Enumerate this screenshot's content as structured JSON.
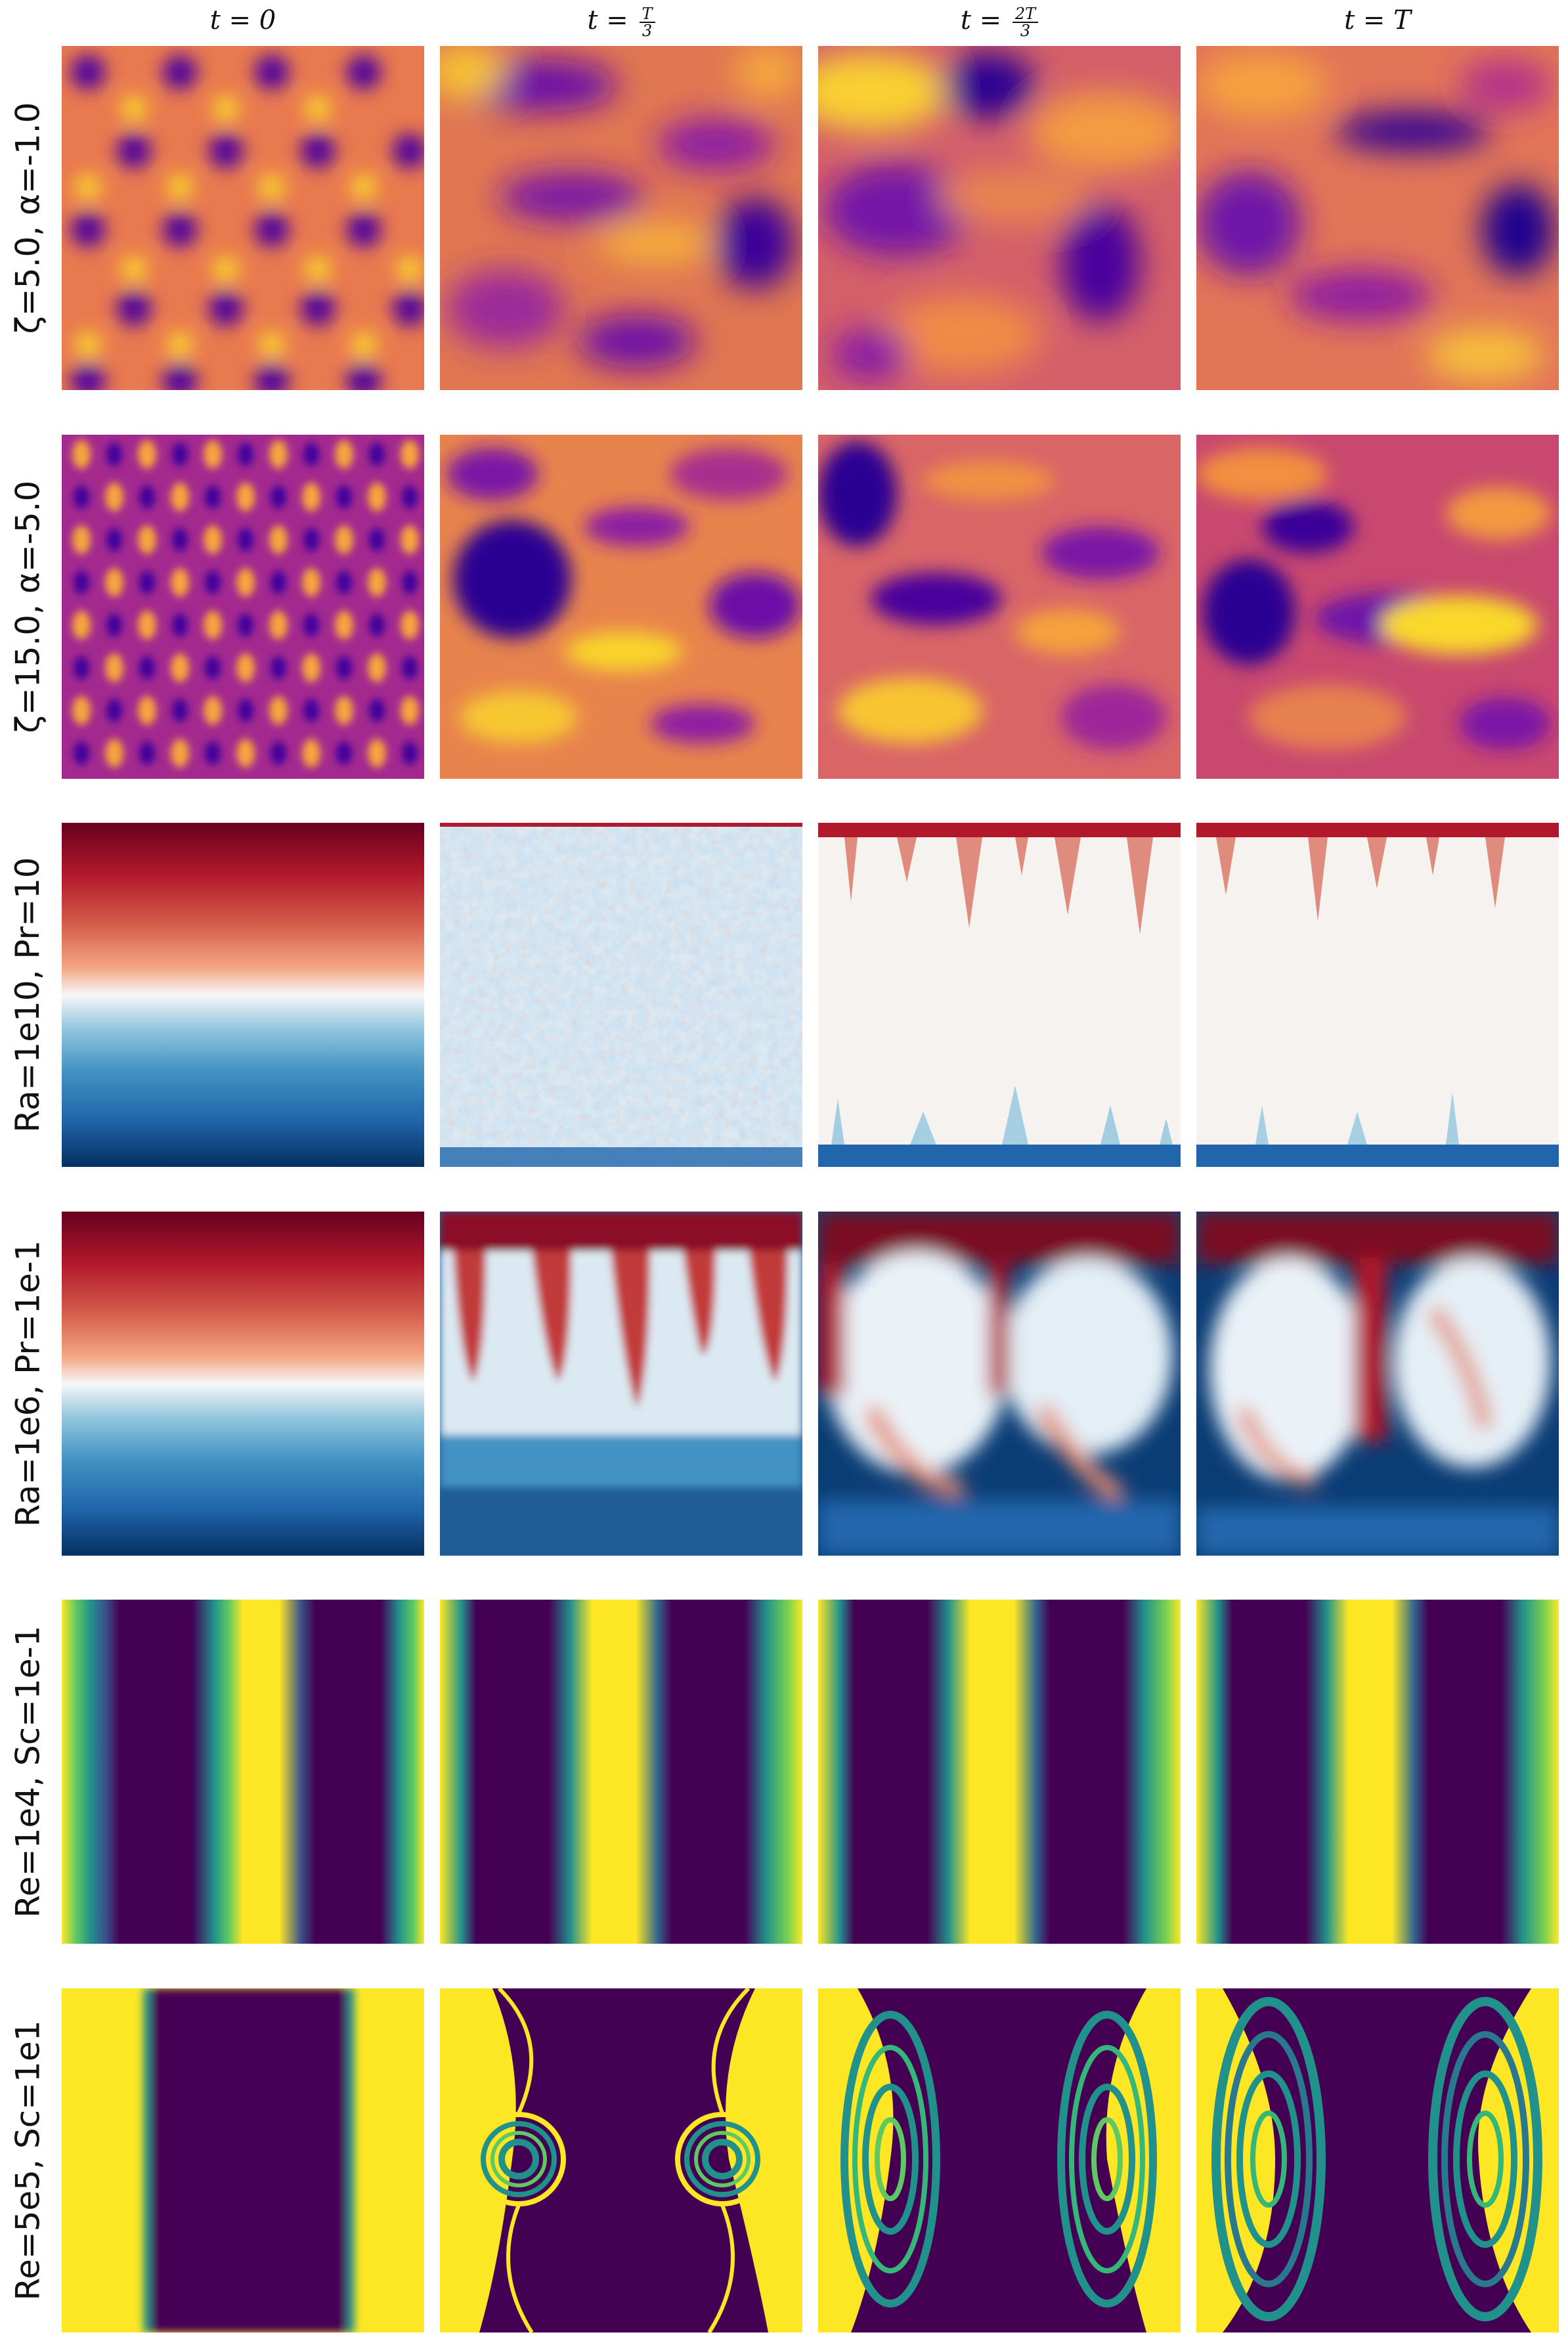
{
  "columns": [
    {
      "label": "t = 0"
    },
    {
      "label_prefix": "t = ",
      "frac_num": "T",
      "frac_den": "3"
    },
    {
      "label_prefix": "t = ",
      "frac_num": "2T",
      "frac_den": "3"
    },
    {
      "label": "t = T"
    }
  ],
  "rows": [
    {
      "label": "ζ=5.0, α=-1.0",
      "colormap": "plasma"
    },
    {
      "label": "ζ=15.0, α=-5.0",
      "colormap": "plasma"
    },
    {
      "label": "Ra=1e10, Pr=10",
      "colormap": "RdBu"
    },
    {
      "label": "Ra=1e6, Pr=1e-1",
      "colormap": "RdBu"
    },
    {
      "label": "Re=1e4, Sc=1e-1",
      "colormap": "viridis"
    },
    {
      "label": "Re=5e5, Sc=1e1",
      "colormap": "viridis"
    }
  ],
  "colors": {
    "plasma_dark": "#2a0593",
    "plasma_mid": "#b83289",
    "plasma_orange": "#f28f3f",
    "plasma_yellow": "#f9e721",
    "rdbu_red": "#67001f",
    "rdbu_white": "#f7f7f7",
    "rdbu_blue": "#053061",
    "viridis_dark": "#440154",
    "viridis_teal": "#21918c",
    "viridis_yellow": "#fde725"
  }
}
